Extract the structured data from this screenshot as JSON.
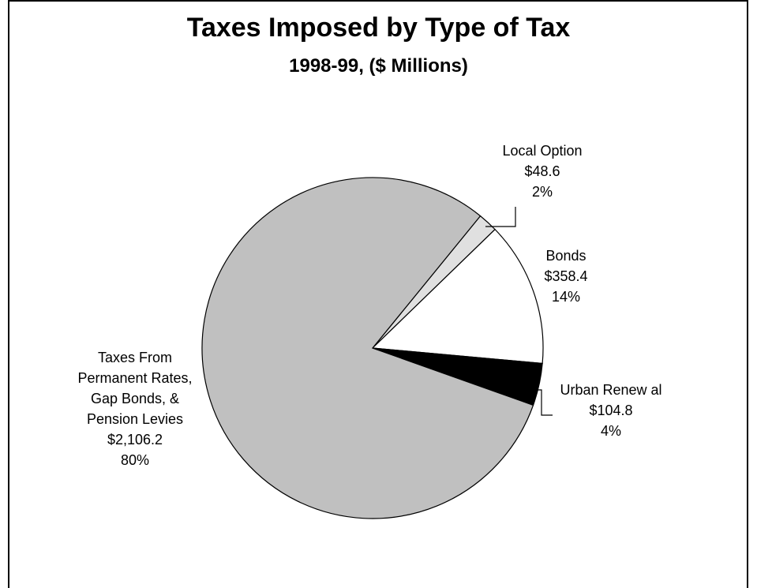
{
  "chart_data": {
    "type": "pie",
    "title": "Taxes Imposed by Type of Tax",
    "subtitle": "1998-99, ($ Millions)",
    "slices": [
      {
        "label_lines": [
          "Local Option"
        ],
        "value_label": "$48.6",
        "percent_label": "2%",
        "value": 48.6,
        "color": "#e0e0e0"
      },
      {
        "label_lines": [
          "Bonds"
        ],
        "value_label": "$358.4",
        "percent_label": "14%",
        "value": 358.4,
        "color": "#ffffff"
      },
      {
        "label_lines": [
          "Urban Renew al"
        ],
        "value_label": "$104.8",
        "percent_label": "4%",
        "value": 104.8,
        "color": "#000000"
      },
      {
        "label_lines": [
          "Taxes From",
          "Permanent Rates,",
          "Gap Bonds, &",
          "Pension Levies"
        ],
        "value_label": "$2,106.2",
        "percent_label": "80%",
        "value": 2106.2,
        "color": "#c0c0c0"
      }
    ]
  }
}
